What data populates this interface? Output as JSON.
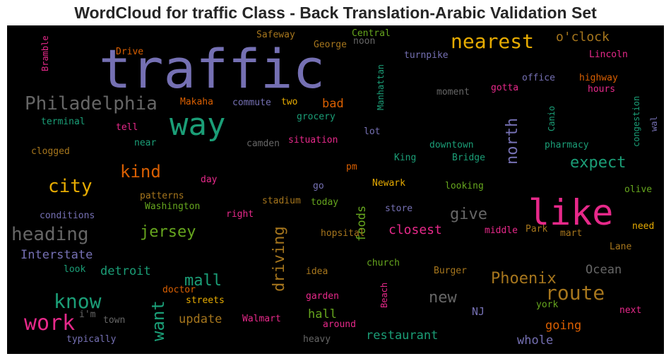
{
  "title": "WordCloud for traffic Class - Back Translation-Arabic Validation Set",
  "colors": {
    "background": "#000000",
    "purple": "#7570b3",
    "green": "#1b9e77",
    "pink": "#e7298a",
    "orange": "#d95f02",
    "gold": "#e6ab02",
    "olive": "#66a61e",
    "brown": "#a6761d",
    "gray": "#666666"
  },
  "words": [
    {
      "text": "traffic",
      "color": "purple"
    },
    {
      "text": "like",
      "color": "pink"
    },
    {
      "text": "way",
      "color": "green"
    },
    {
      "text": "Philadelphia",
      "color": "gray"
    },
    {
      "text": "nearest",
      "color": "gold"
    },
    {
      "text": "route",
      "color": "brown"
    },
    {
      "text": "know",
      "color": "green"
    },
    {
      "text": "work",
      "color": "pink"
    },
    {
      "text": "city",
      "color": "gold"
    },
    {
      "text": "heading",
      "color": "gray"
    },
    {
      "text": "kind",
      "color": "orange"
    },
    {
      "text": "jersey",
      "color": "olive"
    },
    {
      "text": "north",
      "color": "purple"
    },
    {
      "text": "expect",
      "color": "green"
    },
    {
      "text": "driving",
      "color": "brown"
    },
    {
      "text": "want",
      "color": "green"
    },
    {
      "text": "mall",
      "color": "green"
    },
    {
      "text": "Phoenix",
      "color": "brown"
    },
    {
      "text": "give",
      "color": "gray"
    },
    {
      "text": "closest",
      "color": "pink"
    },
    {
      "text": "new",
      "color": "gray"
    },
    {
      "text": "o'clock",
      "color": "brown"
    },
    {
      "text": "Interstate",
      "color": "purple"
    },
    {
      "text": "detroit",
      "color": "green"
    },
    {
      "text": "update",
      "color": "brown"
    },
    {
      "text": "restaurant",
      "color": "green"
    },
    {
      "text": "hall",
      "color": "olive"
    },
    {
      "text": "going",
      "color": "orange"
    },
    {
      "text": "whole",
      "color": "purple"
    },
    {
      "text": "Ocean",
      "color": "gray"
    },
    {
      "text": "bad",
      "color": "orange"
    },
    {
      "text": "foods",
      "color": "olive"
    },
    {
      "text": "NJ",
      "color": "purple"
    },
    {
      "text": "Bramble",
      "color": "pink"
    },
    {
      "text": "Drive",
      "color": "orange"
    },
    {
      "text": "Safeway",
      "color": "brown"
    },
    {
      "text": "George",
      "color": "brown"
    },
    {
      "text": "Central",
      "color": "olive"
    },
    {
      "text": "noon",
      "color": "gray"
    },
    {
      "text": "Manhattan",
      "color": "green"
    },
    {
      "text": "turnpike",
      "color": "purple"
    },
    {
      "text": "Lincoln",
      "color": "pink"
    },
    {
      "text": "office",
      "color": "purple"
    },
    {
      "text": "highway",
      "color": "orange"
    },
    {
      "text": "hours",
      "color": "pink"
    },
    {
      "text": "moment",
      "color": "gray"
    },
    {
      "text": "gotta",
      "color": "pink"
    },
    {
      "text": "Makaha",
      "color": "orange"
    },
    {
      "text": "commute",
      "color": "purple"
    },
    {
      "text": "two",
      "color": "gold"
    },
    {
      "text": "grocery",
      "color": "green"
    },
    {
      "text": "Canio",
      "color": "green"
    },
    {
      "text": "congestion",
      "color": "green"
    },
    {
      "text": "wal",
      "color": "purple"
    },
    {
      "text": "terminal",
      "color": "green"
    },
    {
      "text": "tell",
      "color": "pink"
    },
    {
      "text": "situation",
      "color": "pink"
    },
    {
      "text": "lot",
      "color": "purple"
    },
    {
      "text": "downtown",
      "color": "green"
    },
    {
      "text": "pharmacy",
      "color": "green"
    },
    {
      "text": "clogged",
      "color": "brown"
    },
    {
      "text": "near",
      "color": "green"
    },
    {
      "text": "camden",
      "color": "gray"
    },
    {
      "text": "King",
      "color": "green"
    },
    {
      "text": "Bridge",
      "color": "green"
    },
    {
      "text": "pm",
      "color": "orange"
    },
    {
      "text": "day",
      "color": "pink"
    },
    {
      "text": "go",
      "color": "purple"
    },
    {
      "text": "Newark",
      "color": "gold"
    },
    {
      "text": "looking",
      "color": "olive"
    },
    {
      "text": "olive",
      "color": "olive"
    },
    {
      "text": "patterns",
      "color": "brown"
    },
    {
      "text": "Washington",
      "color": "olive"
    },
    {
      "text": "stadium",
      "color": "brown"
    },
    {
      "text": "today",
      "color": "olive"
    },
    {
      "text": "store",
      "color": "purple"
    },
    {
      "text": "conditions",
      "color": "purple"
    },
    {
      "text": "right",
      "color": "pink"
    },
    {
      "text": "hopsital",
      "color": "brown"
    },
    {
      "text": "middle",
      "color": "pink"
    },
    {
      "text": "Park",
      "color": "brown"
    },
    {
      "text": "mart",
      "color": "brown"
    },
    {
      "text": "need",
      "color": "gold"
    },
    {
      "text": "Lane",
      "color": "brown"
    },
    {
      "text": "look",
      "color": "green"
    },
    {
      "text": "idea",
      "color": "brown"
    },
    {
      "text": "church",
      "color": "olive"
    },
    {
      "text": "Burger",
      "color": "brown"
    },
    {
      "text": "doctor",
      "color": "orange"
    },
    {
      "text": "streets",
      "color": "gold"
    },
    {
      "text": "garden",
      "color": "pink"
    },
    {
      "text": "Beach",
      "color": "pink"
    },
    {
      "text": "york",
      "color": "olive"
    },
    {
      "text": "next",
      "color": "pink"
    },
    {
      "text": "i'm",
      "color": "gray"
    },
    {
      "text": "town",
      "color": "gray"
    },
    {
      "text": "Walmart",
      "color": "pink"
    },
    {
      "text": "around",
      "color": "pink"
    },
    {
      "text": "typically",
      "color": "purple"
    },
    {
      "text": "heavy",
      "color": "gray"
    }
  ]
}
